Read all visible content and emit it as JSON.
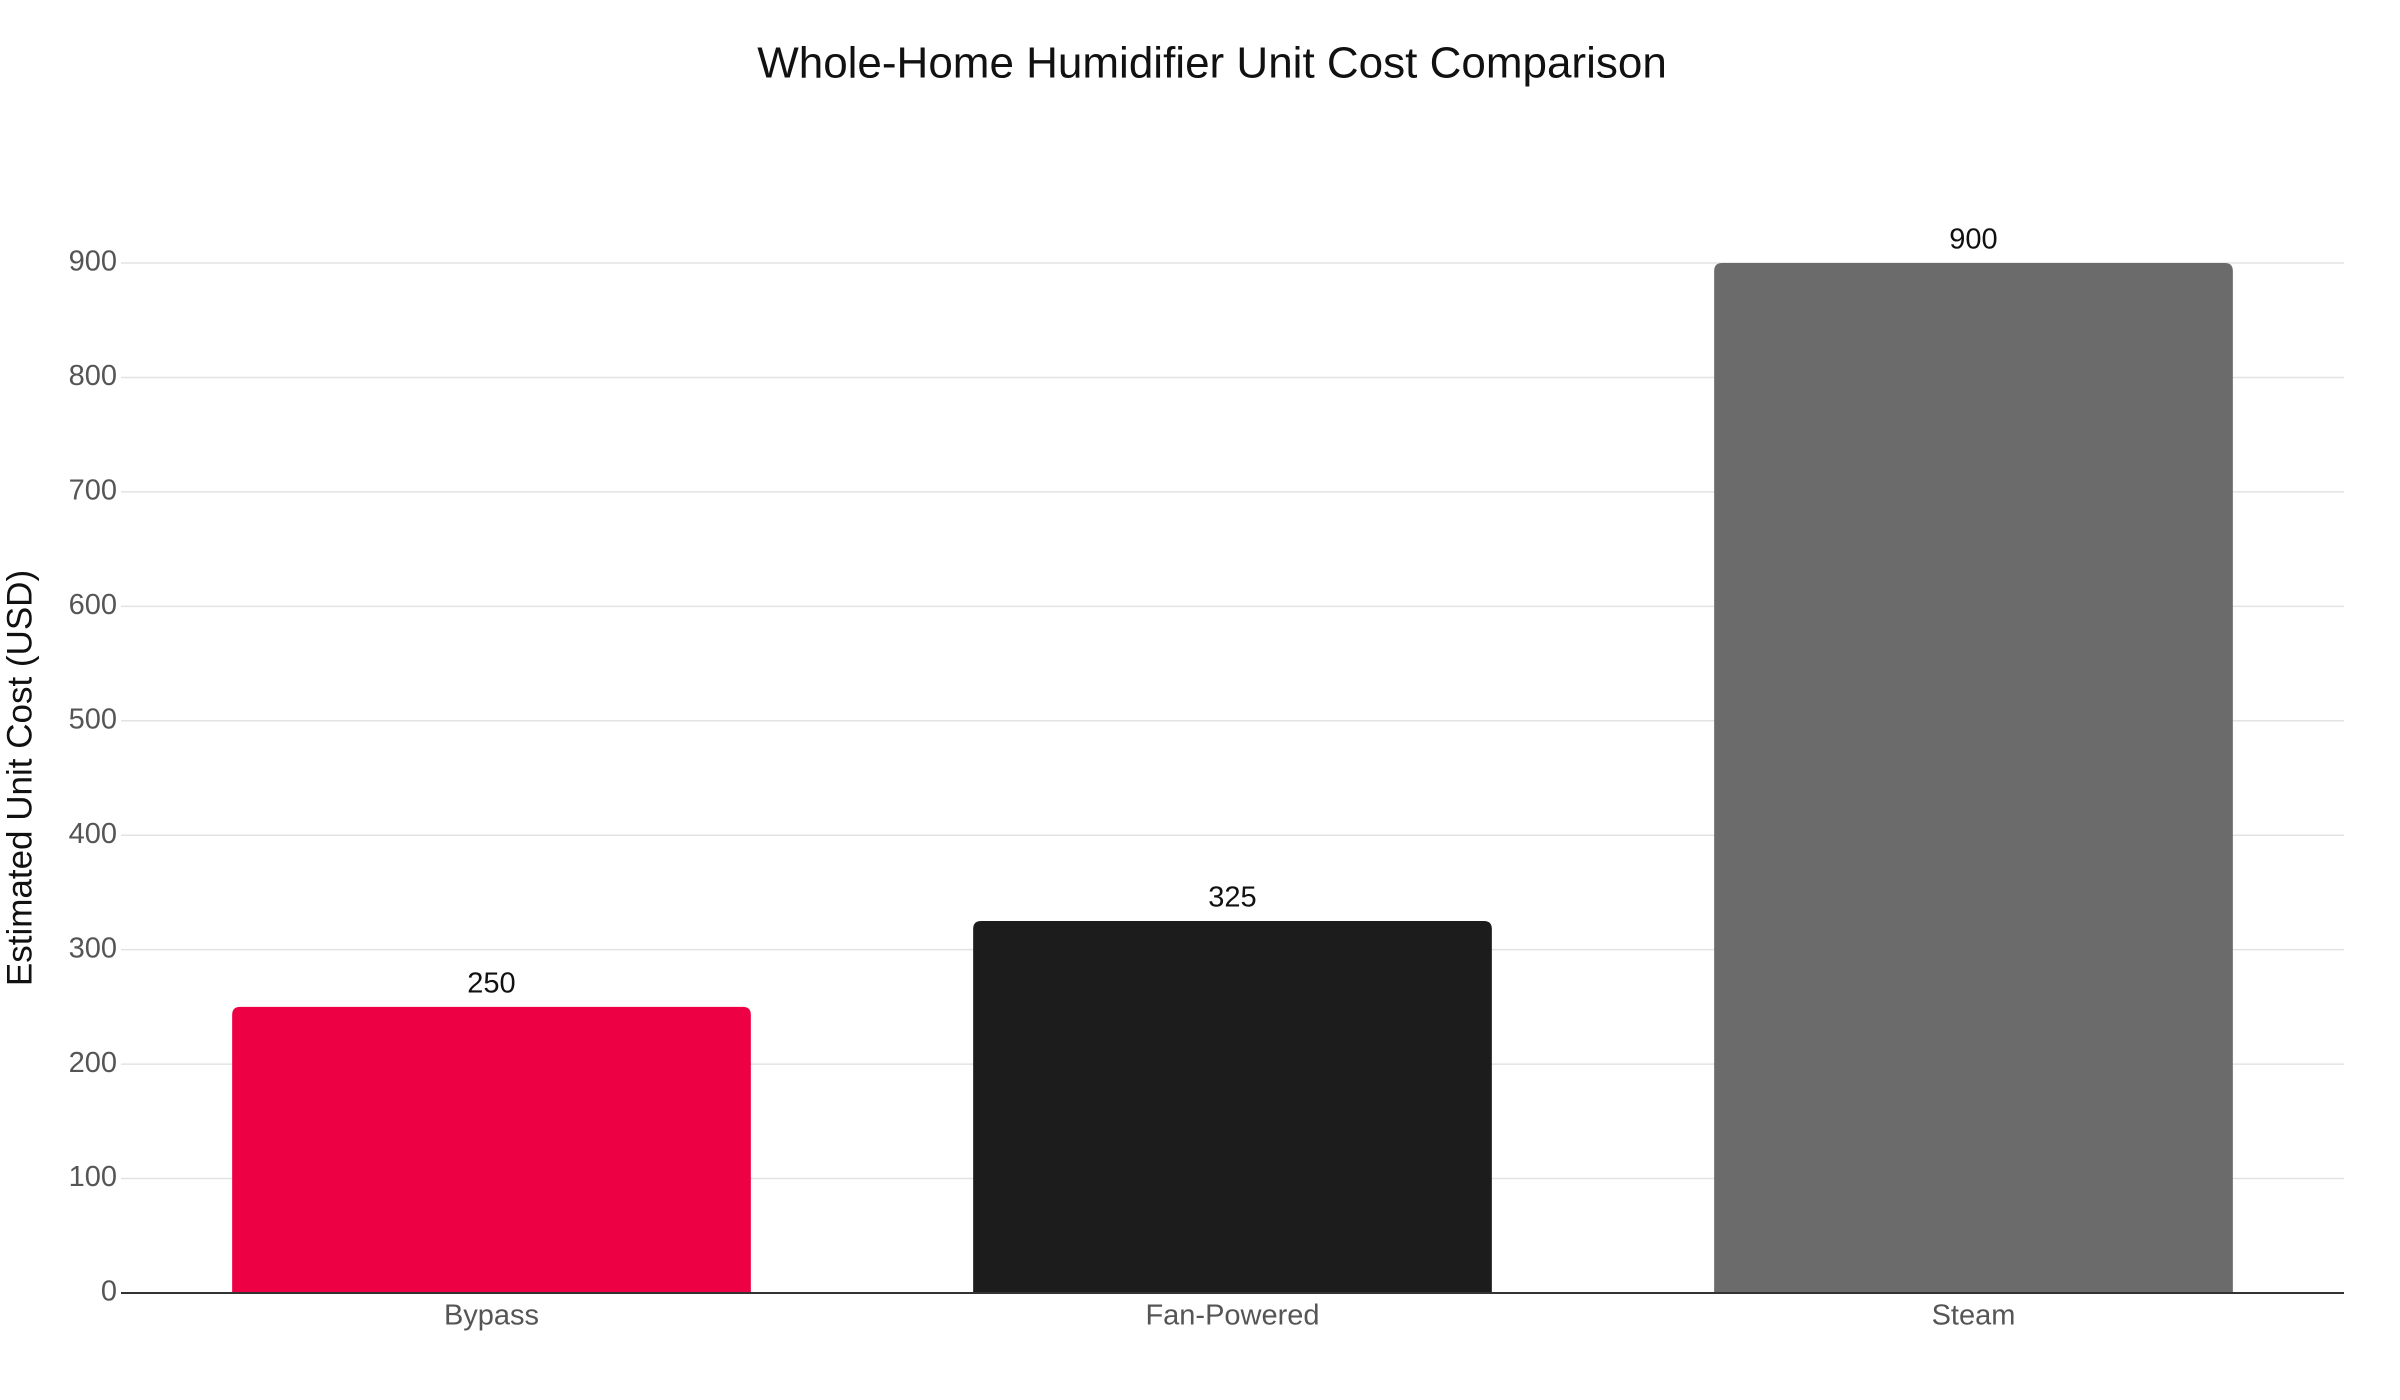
{
  "chart_data": {
    "type": "bar",
    "title": "Whole-Home Humidifier Unit Cost Comparison",
    "y_label": "Estimated Unit Cost (USD)",
    "categories": [
      "Bypass",
      "Fan-Powered",
      "Steam"
    ],
    "values": [
      250,
      325,
      900
    ],
    "colors": [
      "#ee0045",
      "#1c1c1c",
      "#6b6b6b"
    ],
    "ylim": [
      0,
      900
    ],
    "yticks": [
      0,
      100,
      200,
      300,
      400,
      500,
      600,
      700,
      800,
      900
    ],
    "grid": true
  }
}
